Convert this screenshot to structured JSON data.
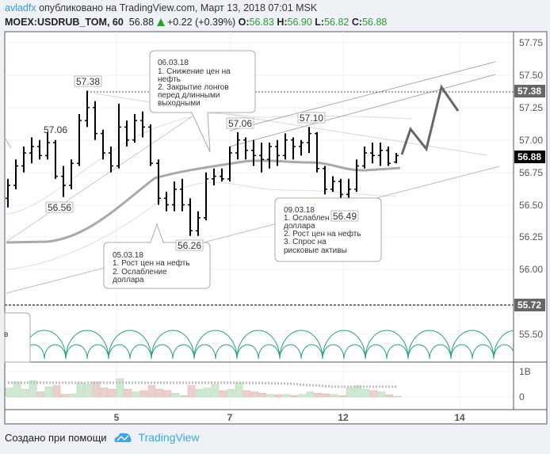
{
  "header": {
    "user": "avladfx",
    "published": " опубликовано на TradingView.com, Март 13, 2018 07:01 MSK",
    "symbol": "MOEX:USDRUB_TOM, 60",
    "last": "56.88",
    "change": "+0.22 (+0.39%)",
    "o_label": "O:",
    "o": "56.83",
    "h_label": "H:",
    "h": "56.90",
    "l_label": "L:",
    "l": "56.82",
    "c_label": "C:",
    "c": "56.88"
  },
  "price_axis": {
    "ticks": [
      "57.75",
      "57.50",
      "57.25",
      "57.00",
      "56.75",
      "56.50",
      "56.25",
      "56.00",
      "55.50"
    ],
    "badges": {
      "level_high": "57.38",
      "last": "56.88",
      "level_low": "55.72"
    }
  },
  "volume_axis": {
    "ticks": [
      "1B",
      "0"
    ]
  },
  "time_axis": {
    "ticks": [
      "5",
      "7",
      "12",
      "14"
    ]
  },
  "price_labels": [
    "57.38",
    "57.06",
    "56.56",
    "56.26",
    "57.06",
    "57.10",
    "56.49"
  ],
  "callouts": {
    "c0603": {
      "date": "06.03.18",
      "l1": "1. Снижение цен на",
      "l2": "нефть",
      "l3": "2. Закрытие лонгов",
      "l4": "перед длинными",
      "l5": "выходными"
    },
    "c0503": {
      "date": "05.03.18",
      "l1": "1. Рост цен на нефть",
      "l2": "2. Ослабление",
      "l3": "доллара"
    },
    "c0903": {
      "date": "09.03.18",
      "l1": "1. Ослаблен",
      "l2": "доллара",
      "l3": "2. Рост цен на нефть",
      "l4": "3. Спрос на",
      "l5": "рисковые активы"
    },
    "hidden": {
      "l1": "в"
    }
  },
  "bars": [
    [
      56.55,
      56.7,
      56.48,
      56.65
    ],
    [
      56.65,
      56.85,
      56.62,
      56.8
    ],
    [
      56.8,
      56.95,
      56.75,
      56.9
    ],
    [
      56.9,
      57.02,
      56.82,
      56.95
    ],
    [
      56.95,
      57.0,
      56.85,
      56.88
    ],
    [
      56.88,
      57.06,
      56.85,
      56.98
    ],
    [
      56.98,
      57.0,
      56.7,
      56.72
    ],
    [
      56.72,
      56.8,
      56.56,
      56.65
    ],
    [
      56.65,
      56.85,
      56.62,
      56.82
    ],
    [
      56.82,
      57.2,
      56.8,
      57.15
    ],
    [
      57.15,
      57.38,
      57.1,
      57.25
    ],
    [
      57.25,
      57.3,
      57.0,
      57.05
    ],
    [
      57.05,
      57.08,
      56.85,
      56.9
    ],
    [
      56.9,
      56.95,
      56.75,
      56.8
    ],
    [
      56.8,
      57.28,
      56.78,
      57.1
    ],
    [
      57.1,
      57.15,
      56.95,
      57.0
    ],
    [
      57.0,
      57.2,
      56.98,
      57.15
    ],
    [
      57.15,
      57.22,
      57.02,
      57.1
    ],
    [
      57.1,
      57.12,
      56.8,
      56.82
    ],
    [
      56.82,
      56.85,
      56.5,
      56.55
    ],
    [
      56.55,
      56.6,
      56.45,
      56.5
    ],
    [
      56.5,
      56.68,
      56.45,
      56.62
    ],
    [
      56.62,
      56.7,
      56.45,
      56.5
    ],
    [
      56.5,
      56.55,
      56.26,
      56.3
    ],
    [
      56.3,
      56.45,
      56.26,
      56.4
    ],
    [
      56.4,
      56.75,
      56.38,
      56.7
    ],
    [
      56.7,
      56.78,
      56.65,
      56.72
    ],
    [
      56.72,
      56.78,
      56.68,
      56.7
    ],
    [
      56.7,
      56.95,
      56.68,
      56.9
    ],
    [
      56.9,
      57.06,
      56.85,
      57.0
    ],
    [
      57.0,
      57.02,
      56.85,
      56.92
    ],
    [
      56.92,
      57.0,
      56.8,
      56.88
    ],
    [
      56.88,
      56.98,
      56.75,
      56.85
    ],
    [
      56.85,
      56.98,
      56.78,
      56.95
    ],
    [
      56.95,
      57.0,
      56.8,
      56.88
    ],
    [
      56.88,
      57.05,
      56.85,
      57.0
    ],
    [
      57.0,
      57.02,
      56.85,
      56.95
    ],
    [
      56.95,
      57.0,
      56.88,
      56.98
    ],
    [
      56.98,
      57.1,
      56.9,
      57.05
    ],
    [
      57.05,
      57.06,
      56.75,
      56.78
    ],
    [
      56.78,
      56.8,
      56.58,
      56.62
    ],
    [
      56.62,
      56.72,
      56.6,
      56.68
    ],
    [
      56.68,
      56.7,
      56.55,
      56.58
    ],
    [
      56.58,
      56.7,
      56.49,
      56.62
    ],
    [
      56.62,
      56.85,
      56.6,
      56.8
    ],
    [
      56.8,
      56.95,
      56.78,
      56.9
    ],
    [
      56.9,
      56.98,
      56.82,
      56.88
    ],
    [
      56.88,
      56.98,
      56.8,
      56.92
    ],
    [
      56.92,
      56.95,
      56.8,
      56.82
    ],
    [
      56.83,
      56.9,
      56.82,
      56.88
    ]
  ],
  "volumes": [
    0.35,
    0.6,
    0.3,
    0.65,
    0.2,
    0.4,
    0.45,
    0.1,
    0.12,
    0.55,
    0.5,
    0.6,
    0.35,
    0.3,
    0.72,
    0.3,
    0.2,
    0.25,
    0.45,
    0.3,
    0.25,
    0.15,
    0.05,
    0.45,
    0.3,
    0.35,
    0.5,
    0.25,
    0.3,
    0.55,
    0.25,
    0.2,
    0.15,
    0.1,
    0.08,
    0.1,
    0.05,
    0.1,
    0.2,
    0.15,
    0.12,
    0.1,
    0.05,
    0.35,
    0.45,
    0.3,
    0.25,
    0.2,
    0.08,
    0.03
  ],
  "colors": {
    "up_volume": "#cfe8cf",
    "down_volume": "#ecd0d0",
    "arcs": "#26a085",
    "accent": "#3a9ad9"
  },
  "footer": {
    "made_with": "Создано при помощи",
    "brand": "TradingView"
  }
}
